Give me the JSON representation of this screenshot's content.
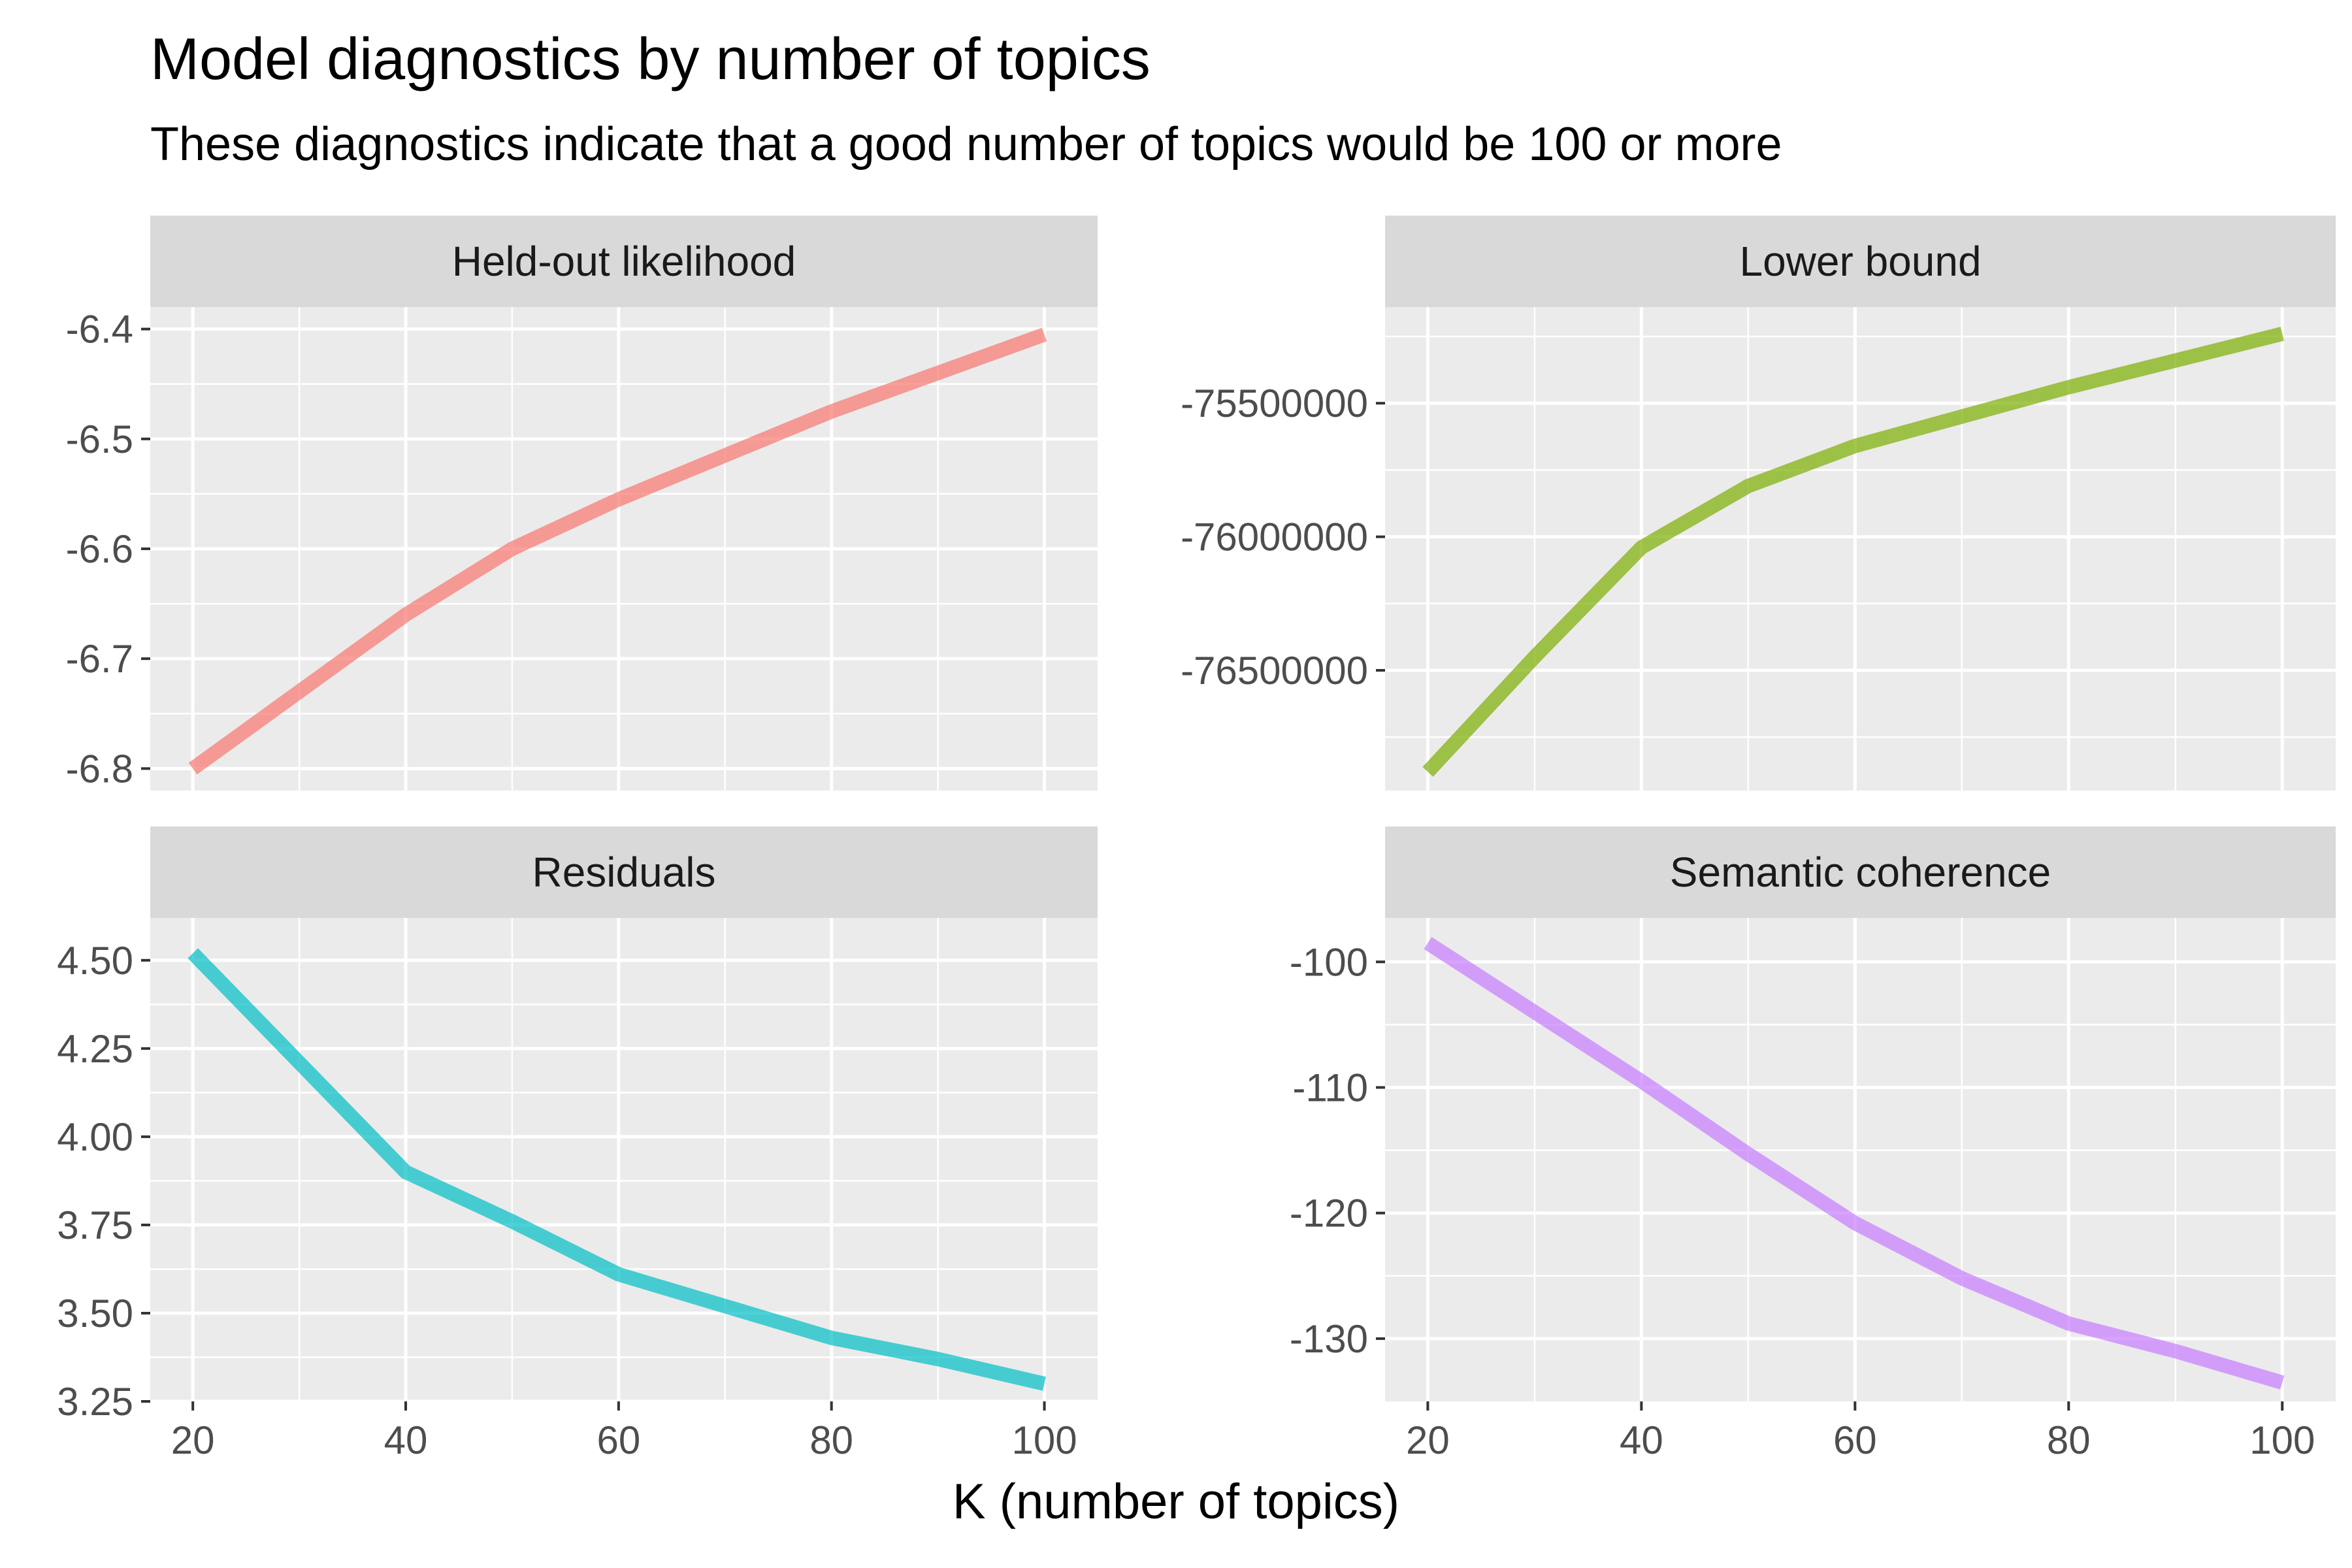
{
  "title": "Model diagnostics by number of topics",
  "subtitle": "These diagnostics indicate that a good number of topics would be 100 or more",
  "xlabel": "K (number of topics)",
  "chart_data": [
    {
      "type": "line",
      "facet": "Held-out likelihood",
      "color": "#F8766D",
      "x": [
        20,
        40,
        50,
        60,
        70,
        80,
        90,
        100
      ],
      "y": [
        -6.8,
        -6.66,
        -6.6,
        -6.555,
        -6.515,
        -6.475,
        -6.44,
        -6.405
      ],
      "xlim": [
        16,
        105
      ],
      "ylim": [
        -6.82,
        -6.38
      ],
      "xticks": [
        20,
        40,
        60,
        80,
        100
      ],
      "yticks": [
        -6.8,
        -6.7,
        -6.6,
        -6.5,
        -6.4
      ],
      "yticklabels": [
        "-6.8",
        "-6.7",
        "-6.6",
        "-6.5",
        "-6.4"
      ],
      "show_x_axis": false
    },
    {
      "type": "line",
      "facet": "Lower bound",
      "color": "#7CAE00",
      "x": [
        20,
        30,
        40,
        50,
        60,
        70,
        80,
        90,
        100
      ],
      "y": [
        -76880000,
        -76450000,
        -76040000,
        -75810000,
        -75660000,
        -75550000,
        -75440000,
        -75340000,
        -75240000
      ],
      "xlim": [
        16,
        105
      ],
      "ylim": [
        -76950000,
        -75140000
      ],
      "xticks": [
        20,
        40,
        60,
        80,
        100
      ],
      "yticks": [
        -76500000,
        -76000000,
        -75500000
      ],
      "yticklabels": [
        "-76500000",
        "-76000000",
        "-75500000"
      ],
      "show_x_axis": false
    },
    {
      "type": "line",
      "facet": "Residuals",
      "color": "#00BFC4",
      "x": [
        20,
        30,
        40,
        50,
        60,
        70,
        80,
        90,
        100
      ],
      "y": [
        4.52,
        4.21,
        3.9,
        3.76,
        3.61,
        3.52,
        3.43,
        3.37,
        3.3
      ],
      "xlim": [
        16,
        105
      ],
      "ylim": [
        3.25,
        4.62
      ],
      "xticks": [
        20,
        40,
        60,
        80,
        100
      ],
      "yticks": [
        3.25,
        3.5,
        3.75,
        4.0,
        4.25,
        4.5
      ],
      "yticklabels": [
        "3.25",
        "3.50",
        "3.75",
        "4.00",
        "4.25",
        "4.50"
      ],
      "show_x_axis": true
    },
    {
      "type": "line",
      "facet": "Semantic coherence",
      "color": "#C77CFF",
      "x": [
        20,
        30,
        40,
        50,
        60,
        70,
        80,
        90,
        100
      ],
      "y": [
        -98.5,
        -104.0,
        -109.5,
        -115.3,
        -120.8,
        -125.2,
        -128.8,
        -131.0,
        -133.5
      ],
      "xlim": [
        16,
        105
      ],
      "ylim": [
        -135,
        -96.5
      ],
      "xticks": [
        20,
        40,
        60,
        80,
        100
      ],
      "yticks": [
        -130,
        -120,
        -110,
        -100
      ],
      "yticklabels": [
        "-130",
        "-120",
        "-110",
        "-100"
      ],
      "show_x_axis": true
    }
  ]
}
